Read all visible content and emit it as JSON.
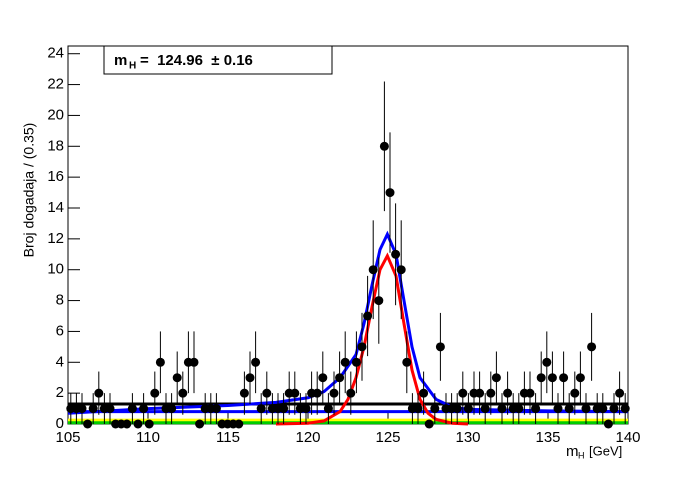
{
  "chart_data": {
    "type": "scatter",
    "y_label": "Broj dogadaja / (0.35)",
    "x_label": {
      "symbol": "m",
      "subscript": "H",
      "unit": "[GeV]"
    },
    "annotation": {
      "symbol": "m",
      "subscript": "H",
      "text": "=  124.96  ± 0.16"
    },
    "color": "#000000",
    "x": [
      105.175,
      105.525,
      105.875,
      106.225,
      106.575,
      106.925,
      107.275,
      107.625,
      107.975,
      108.325,
      108.675,
      109.025,
      109.375,
      109.725,
      110.075,
      110.425,
      110.775,
      111.125,
      111.475,
      111.825,
      112.175,
      112.525,
      112.875,
      113.225,
      113.575,
      113.925,
      114.275,
      114.625,
      114.975,
      115.325,
      115.675,
      116.025,
      116.375,
      116.725,
      117.075,
      117.425,
      117.775,
      118.125,
      118.475,
      118.825,
      119.175,
      119.525,
      119.875,
      120.225,
      120.575,
      120.925,
      121.275,
      121.625,
      121.975,
      122.325,
      122.675,
      123.025,
      123.375,
      123.725,
      124.075,
      124.425,
      124.775,
      125.125,
      125.475,
      125.825,
      126.175,
      126.525,
      126.875,
      127.225,
      127.575,
      127.925,
      128.275,
      128.625,
      128.975,
      129.325,
      129.675,
      130.025,
      130.375,
      130.725,
      131.075,
      131.425,
      131.775,
      132.125,
      132.475,
      132.825,
      133.175,
      133.525,
      133.875,
      134.225,
      134.575,
      134.925,
      135.275,
      135.625,
      135.975,
      136.325,
      136.675,
      137.025,
      137.375,
      137.725,
      138.075,
      138.425,
      138.775,
      139.125,
      139.475,
      139.825
    ],
    "values": [
      1,
      1,
      1,
      0,
      1,
      2,
      1,
      1,
      0,
      0,
      0,
      1,
      0,
      1,
      0,
      2,
      4,
      1,
      1,
      3,
      2,
      4,
      4,
      0,
      1,
      1,
      1,
      0,
      0,
      0,
      0,
      2,
      3,
      4,
      1,
      2,
      1,
      1,
      1,
      2,
      2,
      1,
      1,
      2,
      2,
      3,
      1,
      2,
      3,
      4,
      2,
      4,
      5,
      7,
      10,
      8,
      18,
      15,
      11,
      10,
      4,
      1,
      1,
      2,
      0,
      1,
      5,
      1,
      1,
      1,
      2,
      1,
      2,
      2,
      1,
      2,
      3,
      1,
      2,
      1,
      1,
      2,
      2,
      1,
      3,
      4,
      3,
      1,
      3,
      1,
      2,
      3,
      1,
      5,
      1,
      1,
      0,
      1,
      2,
      1
    ],
    "errors": [
      1,
      1,
      1,
      0,
      1,
      1.4,
      1,
      1,
      0,
      0,
      0,
      1,
      0,
      1,
      0,
      1.4,
      2,
      1,
      1,
      1.7,
      1.4,
      2,
      2,
      0,
      1,
      1,
      1,
      0,
      0,
      0,
      0,
      1.4,
      1.7,
      2,
      1,
      1.4,
      1,
      1,
      1,
      1.4,
      1.4,
      1,
      1,
      1.4,
      1.4,
      1.7,
      1,
      1.4,
      1.7,
      2,
      1.4,
      2,
      2.2,
      2.6,
      3.2,
      2.8,
      4.2,
      3.9,
      3.3,
      3.2,
      2,
      1,
      1,
      1.4,
      0,
      1,
      2.2,
      1,
      1,
      1,
      1.4,
      1,
      1.4,
      1.4,
      1,
      1.4,
      1.7,
      1,
      1.4,
      1,
      1,
      1.4,
      1.4,
      1,
      1.7,
      2,
      1.7,
      1,
      1.7,
      1,
      1.4,
      1.7,
      1,
      2.2,
      1,
      1,
      0,
      1,
      1.4,
      1
    ],
    "curves": [
      {
        "color": "#ffff00",
        "x": [
          105,
          140
        ],
        "y": [
          0.25,
          0.25
        ]
      },
      {
        "color": "#00cc00",
        "x": [
          105,
          140
        ],
        "y": [
          0.08,
          0.08
        ]
      },
      {
        "color": "#000000",
        "x": [
          105,
          140
        ],
        "y": [
          1.3,
          1.3
        ]
      },
      {
        "color": "#0000ff",
        "x": [
          105,
          140
        ],
        "y": [
          0.8,
          0.8
        ]
      },
      {
        "color": "#ff0000",
        "x": [
          118,
          120,
          121,
          122,
          122.5,
          123,
          123.5,
          124,
          124.5,
          124.96,
          125.5,
          126,
          126.5,
          127,
          127.5,
          128,
          129,
          130
        ],
        "y": [
          0,
          0.05,
          0.2,
          0.8,
          1.6,
          3,
          5,
          7.6,
          10,
          10.9,
          9.6,
          6.5,
          3.5,
          1.6,
          0.7,
          0.3,
          0.05,
          0
        ]
      },
      {
        "color": "#0000ff",
        "x": [
          105,
          110,
          115,
          118,
          120,
          121,
          122,
          123,
          123.5,
          124,
          124.5,
          124.96,
          125.5,
          126,
          126.5,
          127,
          128,
          129,
          130,
          135,
          140
        ],
        "y": [
          0.7,
          1.0,
          1.2,
          1.4,
          1.7,
          2.1,
          3,
          4.5,
          6.5,
          9,
          11.3,
          12.3,
          11,
          8,
          5,
          3,
          1.6,
          1.1,
          0.95,
          0.85,
          0.8
        ]
      }
    ],
    "xlim": [
      105,
      140
    ],
    "ylim": [
      0,
      24.5
    ],
    "xticks": [
      105,
      110,
      115,
      120,
      125,
      130,
      135,
      140
    ],
    "yticks": [
      0,
      2,
      4,
      6,
      8,
      10,
      12,
      14,
      16,
      18,
      20,
      22,
      24
    ]
  }
}
